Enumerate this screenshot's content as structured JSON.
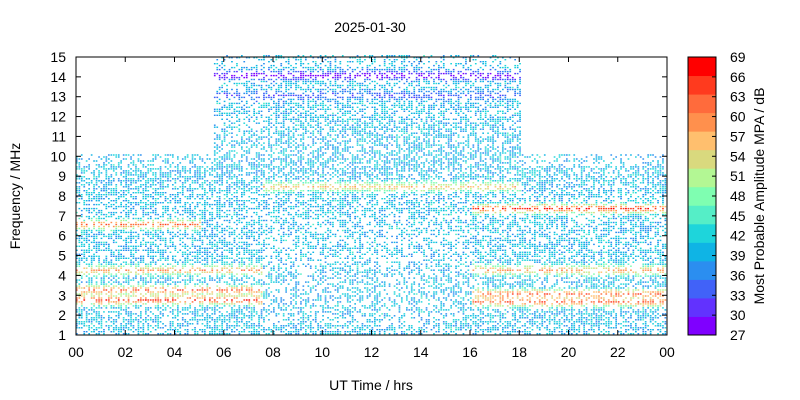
{
  "chart_data": {
    "type": "heatmap",
    "title": "2025-01-30",
    "xlabel": "UT Time / hrs",
    "ylabel": "Frequency / MHz",
    "xlim": [
      0,
      24
    ],
    "ylim": [
      1,
      15
    ],
    "x_ticks": [
      "00",
      "02",
      "04",
      "06",
      "08",
      "10",
      "12",
      "14",
      "16",
      "18",
      "20",
      "22",
      "00"
    ],
    "y_ticks": [
      "1",
      "2",
      "3",
      "4",
      "5",
      "6",
      "7",
      "8",
      "9",
      "10",
      "11",
      "12",
      "13",
      "14",
      "15"
    ],
    "colorbar": {
      "label": "Most Probable Amplitude MPA / dB",
      "range": [
        27,
        69
      ],
      "ticks": [
        "27",
        "30",
        "33",
        "36",
        "39",
        "42",
        "45",
        "48",
        "51",
        "54",
        "57",
        "60",
        "63",
        "66",
        "69"
      ],
      "colors": [
        "#7f00ff",
        "#6232fe",
        "#4162f8",
        "#2b8ef0",
        "#0fb4e5",
        "#1ed5db",
        "#55eec7",
        "#7ffeb1",
        "#b3f794",
        "#d9d97e",
        "#ffbf6e",
        "#ff904d",
        "#ff6b3c",
        "#ff3a1e",
        "#ff0000"
      ]
    },
    "frequency_coverage_upper_mhz": [
      {
        "from_hr": 0.0,
        "to_hr": 5.5,
        "upper_mhz": 10
      },
      {
        "from_hr": 5.5,
        "to_hr": 18.0,
        "upper_mhz": 15
      },
      {
        "from_hr": 18.0,
        "to_hr": 24.0,
        "upper_mhz": 10
      }
    ],
    "notable_bands": [
      {
        "from_hr": 0.0,
        "to_hr": 7.5,
        "freq_mhz": 2.7,
        "mpa_db": 66
      },
      {
        "from_hr": 0.0,
        "to_hr": 7.5,
        "freq_mhz": 3.2,
        "mpa_db": 63
      },
      {
        "from_hr": 0.0,
        "to_hr": 7.5,
        "freq_mhz": 4.2,
        "mpa_db": 60
      },
      {
        "from_hr": 0.0,
        "to_hr": 5.0,
        "freq_mhz": 6.5,
        "mpa_db": 63
      },
      {
        "from_hr": 7.5,
        "to_hr": 18.0,
        "freq_mhz": 8.4,
        "mpa_db": 57
      },
      {
        "from_hr": 16.0,
        "to_hr": 24.0,
        "freq_mhz": 7.3,
        "mpa_db": 66
      },
      {
        "from_hr": 16.0,
        "to_hr": 24.0,
        "freq_mhz": 3.0,
        "mpa_db": 63
      },
      {
        "from_hr": 16.0,
        "to_hr": 24.0,
        "freq_mhz": 4.2,
        "mpa_db": 60
      },
      {
        "from_hr": 16.0,
        "to_hr": 24.0,
        "freq_mhz": 2.6,
        "mpa_db": 63
      },
      {
        "from_hr": 5.5,
        "to_hr": 18.0,
        "freq_mhz": 14.0,
        "mpa_db": 27
      },
      {
        "from_hr": 5.5,
        "to_hr": 18.0,
        "freq_mhz": 13.0,
        "mpa_db": 33
      }
    ],
    "background_mpa_db": 40
  }
}
